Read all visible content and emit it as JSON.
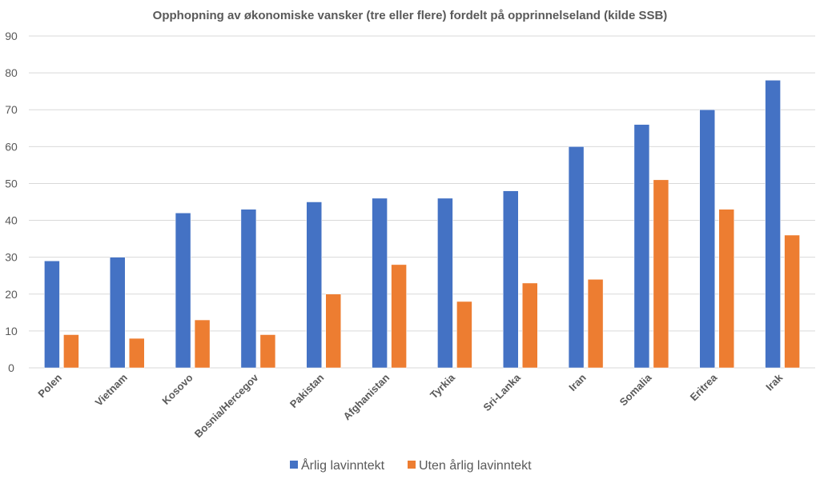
{
  "chart_data": {
    "type": "bar",
    "title": "Opphopning av økonomiske vansker (tre eller flere) fordelt på opprinnelseland (kilde SSB)",
    "xlabel": "",
    "ylabel": "",
    "ylim": [
      0,
      90
    ],
    "yticks": [
      0,
      10,
      20,
      30,
      40,
      50,
      60,
      70,
      80,
      90
    ],
    "grid": true,
    "legend_position": "bottom",
    "categories": [
      "Polen",
      "Vietnam",
      "Kosovo",
      "Bosnia/Hercegov",
      "Pakistan",
      "Afghanistan",
      "Tyrkia",
      "Sri-Lanka",
      "Iran",
      "Somalia",
      "Eritrea",
      "Irak"
    ],
    "series": [
      {
        "name": "Årlig lavinntekt",
        "color": "#4472C4",
        "values": [
          29,
          30,
          42,
          43,
          45,
          46,
          46,
          48,
          60,
          66,
          70,
          78
        ]
      },
      {
        "name": "Uten årlig lavinntekt",
        "color": "#ED7D31",
        "values": [
          9,
          8,
          13,
          9,
          20,
          28,
          18,
          23,
          24,
          51,
          43,
          36
        ]
      }
    ]
  }
}
